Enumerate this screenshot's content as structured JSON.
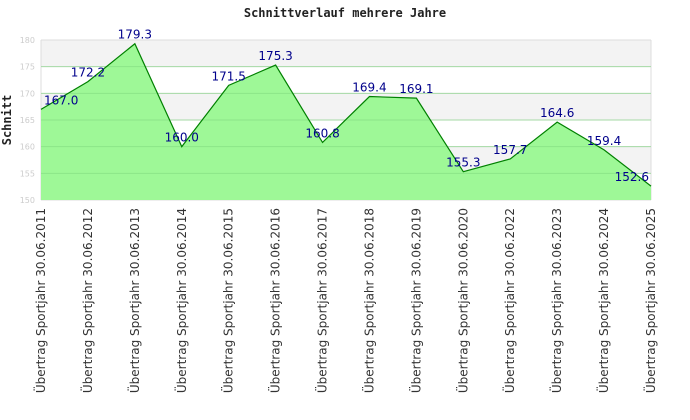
{
  "chart_data": {
    "type": "area",
    "title": "Schnittverlauf mehrere Jahre",
    "xlabel": "",
    "ylabel": "Schnitt",
    "ylim": [
      150,
      180
    ],
    "yticks": [
      150,
      155,
      160,
      165,
      170,
      175,
      180
    ],
    "categories": [
      "Übertrag Sportjahr 30.06.2011",
      "Übertrag Sportjahr 30.06.2012",
      "Übertrag Sportjahr 30.06.2013",
      "Übertrag Sportjahr 30.06.2014",
      "Übertrag Sportjahr 30.06.2015",
      "Übertrag Sportjahr 30.06.2016",
      "Übertrag Sportjahr 30.06.2017",
      "Übertrag Sportjahr 30.06.2018",
      "Übertrag Sportjahr 30.06.2019",
      "Übertrag Sportjahr 30.06.2020",
      "Übertrag Sportjahr 30.06.2022",
      "Übertrag Sportjahr 30.06.2023",
      "Übertrag Sportjahr 30.06.2024",
      "Übertrag Sportjahr 30.06.2025"
    ],
    "values": [
      167.0,
      172.2,
      179.3,
      160.0,
      171.5,
      175.3,
      160.8,
      169.4,
      169.1,
      155.3,
      157.7,
      164.6,
      159.4,
      152.6
    ],
    "labels": [
      "167.0",
      "172.2",
      "179.3",
      "160.0",
      "171.5",
      "175.3",
      "160.8",
      "169.4",
      "169.1",
      "155.3",
      "157.7",
      "164.6",
      "159.4",
      "152.6"
    ],
    "grid": true,
    "colors": {
      "fill": "#99f891",
      "line": "#008000",
      "label": "#00008b",
      "band": "#f3f3f3"
    }
  }
}
